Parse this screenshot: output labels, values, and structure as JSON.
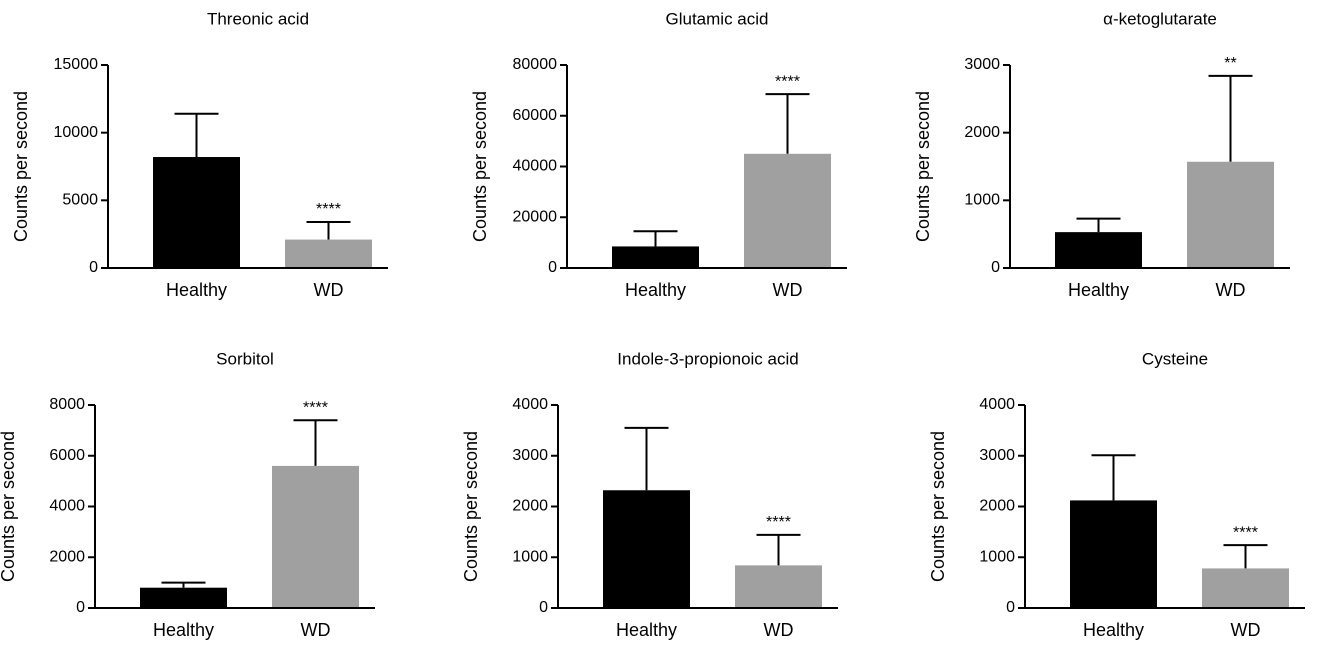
{
  "chart_data": [
    {
      "type": "bar",
      "title": "Threonic acid",
      "ylabel": "Counts per second",
      "categories": [
        "Healthy",
        "WD"
      ],
      "values": [
        8200,
        2100
      ],
      "errors": [
        3200,
        1300
      ],
      "significance": [
        null,
        "****"
      ],
      "colors": [
        "#000000",
        "#a0a0a0"
      ],
      "ylim": [
        0,
        15000
      ],
      "yticks": [
        0,
        5000,
        10000,
        15000
      ]
    },
    {
      "type": "bar",
      "title": "Glutamic acid",
      "ylabel": "Counts per second",
      "categories": [
        "Healthy",
        "WD"
      ],
      "values": [
        8500,
        45000
      ],
      "errors": [
        6000,
        23500
      ],
      "significance": [
        null,
        "****"
      ],
      "colors": [
        "#000000",
        "#a0a0a0"
      ],
      "ylim": [
        0,
        80000
      ],
      "yticks": [
        0,
        20000,
        40000,
        60000,
        80000
      ]
    },
    {
      "type": "bar",
      "title": "α-ketoglutarate",
      "ylabel": "Counts per second",
      "categories": [
        "Healthy",
        "WD"
      ],
      "values": [
        530,
        1570
      ],
      "errors": [
        200,
        1270
      ],
      "significance": [
        null,
        "**"
      ],
      "colors": [
        "#000000",
        "#a0a0a0"
      ],
      "ylim": [
        0,
        3000
      ],
      "yticks": [
        0,
        1000,
        2000,
        3000
      ]
    },
    {
      "type": "bar",
      "title": "Sorbitol",
      "ylabel": "Counts per second",
      "categories": [
        "Healthy",
        "WD"
      ],
      "values": [
        800,
        5600
      ],
      "errors": [
        200,
        1800
      ],
      "significance": [
        null,
        "****"
      ],
      "colors": [
        "#000000",
        "#a0a0a0"
      ],
      "ylim": [
        0,
        8000
      ],
      "yticks": [
        0,
        2000,
        4000,
        6000,
        8000
      ]
    },
    {
      "type": "bar",
      "title": "Indole-3-propionoic acid",
      "ylabel": "Counts per second",
      "categories": [
        "Healthy",
        "WD"
      ],
      "values": [
        2320,
        840
      ],
      "errors": [
        1230,
        600
      ],
      "significance": [
        null,
        "****"
      ],
      "colors": [
        "#000000",
        "#a0a0a0"
      ],
      "ylim": [
        0,
        4000
      ],
      "yticks": [
        0,
        1000,
        2000,
        3000,
        4000
      ]
    },
    {
      "type": "bar",
      "title": "Cysteine",
      "ylabel": "Counts per second",
      "categories": [
        "Healthy",
        "WD"
      ],
      "values": [
        2120,
        780
      ],
      "errors": [
        890,
        460
      ],
      "significance": [
        null,
        "****"
      ],
      "colors": [
        "#000000",
        "#a0a0a0"
      ],
      "ylim": [
        0,
        4000
      ],
      "yticks": [
        0,
        1000,
        2000,
        3000,
        4000
      ]
    }
  ]
}
